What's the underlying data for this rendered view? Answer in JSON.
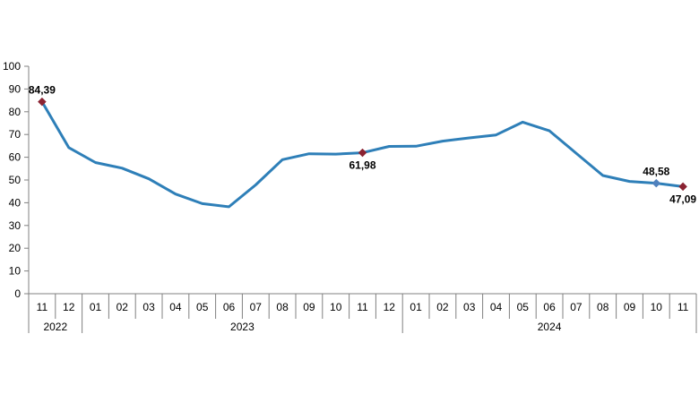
{
  "chart_data": {
    "type": "line",
    "title": "",
    "xlabel": "",
    "ylabel": "",
    "ylim": [
      0,
      100
    ],
    "yticks": [
      0,
      10,
      20,
      30,
      40,
      50,
      60,
      70,
      80,
      90,
      100
    ],
    "grid": false,
    "legend": "none",
    "categories": [
      "11",
      "12",
      "01",
      "02",
      "03",
      "04",
      "05",
      "06",
      "07",
      "08",
      "09",
      "10",
      "11",
      "12",
      "01",
      "02",
      "03",
      "04",
      "05",
      "06",
      "07",
      "08",
      "09",
      "10",
      "11"
    ],
    "year_groups": [
      {
        "label": "2022",
        "count": 2
      },
      {
        "label": "2023",
        "count": 12
      },
      {
        "label": "2024",
        "count": 11
      }
    ],
    "series": [
      {
        "color": "#2e7fb8",
        "values": [
          84.39,
          64.27,
          57.68,
          55.18,
          50.52,
          43.81,
          39.59,
          38.21,
          47.83,
          58.94,
          61.53,
          61.36,
          61.98,
          64.77,
          64.86,
          67.07,
          68.5,
          69.8,
          75.45,
          71.6,
          61.78,
          51.97,
          49.38,
          48.58,
          47.09
        ]
      }
    ],
    "annotations": [
      {
        "index": 0,
        "label": "84,39",
        "marker_color": "#8b2332",
        "position": "above"
      },
      {
        "index": 12,
        "label": "61,98",
        "marker_color": "#8b2332",
        "position": "below"
      },
      {
        "index": 23,
        "label": "48,58",
        "marker_color": "#4f81bd",
        "position": "above"
      },
      {
        "index": 24,
        "label": "47,09",
        "marker_color": "#8b2332",
        "position": "below"
      }
    ],
    "axis_color": "#808080"
  }
}
